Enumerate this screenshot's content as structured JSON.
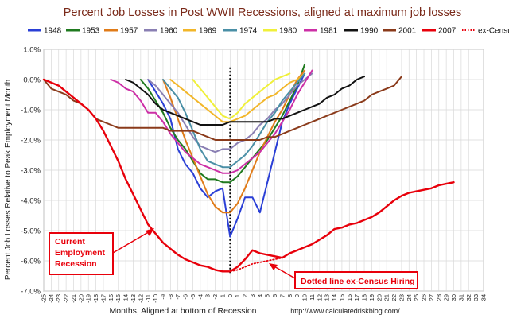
{
  "chart_data": {
    "type": "line",
    "title": "Percent Job Losses in Post WWII Recessions, aligned at maximum job losses",
    "xlabel": "Months, Aligned at bottom of Recession",
    "ylabel": "Percent Job Losses Relative to Peak Employment Month",
    "source": "http://www.calculatedriskblog.com/",
    "xlim": [
      -25,
      34
    ],
    "ylim": [
      -7.0,
      1.0
    ],
    "x_ticks": [
      -25,
      -24,
      -23,
      -22,
      -21,
      -20,
      -19,
      -18,
      -17,
      -16,
      -15,
      -14,
      -13,
      -12,
      -11,
      -10,
      -9,
      -8,
      -7,
      -6,
      -5,
      -4,
      -3,
      -2,
      -1,
      0,
      1,
      2,
      3,
      4,
      5,
      6,
      7,
      8,
      9,
      10,
      11,
      12,
      13,
      14,
      15,
      16,
      17,
      18,
      19,
      20,
      21,
      22,
      23,
      24,
      25,
      26,
      27,
      28,
      29,
      30,
      31,
      32,
      33,
      34
    ],
    "y_ticks": [
      1.0,
      0.0,
      -1.0,
      -2.0,
      -3.0,
      -4.0,
      -5.0,
      -6.0,
      -7.0
    ],
    "y_tick_labels": [
      "1.0%",
      "0.0%",
      "-1.0%",
      "-2.0%",
      "-3.0%",
      "-4.0%",
      "-5.0%",
      "-6.0%",
      "-7.0%"
    ],
    "grid": true,
    "legend_position": "top",
    "series": [
      {
        "name": "1948",
        "color": "#2a3fd6",
        "x": [
          -11,
          -10,
          -9,
          -8,
          -7,
          -6,
          -5,
          -4,
          -3,
          -2,
          -1,
          0,
          1,
          2,
          3,
          4,
          5,
          6,
          7,
          8,
          9,
          10
        ],
        "y": [
          0.0,
          -0.4,
          -0.8,
          -1.3,
          -2.3,
          -2.8,
          -3.1,
          -3.6,
          -3.9,
          -3.7,
          -3.6,
          -5.2,
          -4.6,
          -3.9,
          -3.9,
          -4.4,
          -3.4,
          -2.4,
          -1.4,
          -0.8,
          -0.3,
          0.2
        ]
      },
      {
        "name": "1953",
        "color": "#1f7a1f",
        "x": [
          -12,
          -11,
          -10,
          -9,
          -8,
          -7,
          -6,
          -5,
          -4,
          -3,
          -2,
          -1,
          0,
          1,
          2,
          3,
          4,
          5,
          6,
          7,
          8,
          9,
          10
        ],
        "y": [
          0.0,
          -0.3,
          -0.7,
          -1.1,
          -1.6,
          -2.0,
          -2.3,
          -2.7,
          -3.1,
          -3.3,
          -3.3,
          -3.4,
          -3.4,
          -3.2,
          -2.9,
          -2.6,
          -2.3,
          -2.0,
          -1.6,
          -1.2,
          -0.7,
          -0.2,
          0.5
        ]
      },
      {
        "name": "1957",
        "color": "#e07b18",
        "x": [
          -9,
          -8,
          -7,
          -6,
          -5,
          -4,
          -3,
          -2,
          -1,
          0,
          1,
          2,
          3,
          4,
          5,
          6,
          7,
          8,
          9,
          10
        ],
        "y": [
          0.0,
          -0.6,
          -1.3,
          -2.0,
          -2.6,
          -3.2,
          -3.8,
          -4.2,
          -4.4,
          -4.4,
          -4.1,
          -3.6,
          -3.0,
          -2.4,
          -1.9,
          -1.4,
          -1.0,
          -0.5,
          0.0,
          0.3
        ]
      },
      {
        "name": "1960",
        "color": "#8a7fb3",
        "x": [
          -11,
          -10,
          -9,
          -8,
          -7,
          -6,
          -5,
          -4,
          -3,
          -2,
          -1,
          0,
          1,
          2,
          3,
          4,
          5,
          6,
          7,
          8,
          9,
          10,
          11
        ],
        "y": [
          0.0,
          -0.2,
          -0.5,
          -0.8,
          -1.1,
          -1.5,
          -1.9,
          -2.2,
          -2.3,
          -2.4,
          -2.3,
          -2.3,
          -2.1,
          -2.0,
          -1.8,
          -1.5,
          -1.3,
          -1.0,
          -0.8,
          -0.5,
          -0.2,
          0.0,
          0.2
        ]
      },
      {
        "name": "1969",
        "color": "#f2b629",
        "x": [
          -8,
          -7,
          -6,
          -5,
          -4,
          -3,
          -2,
          -1,
          0,
          1,
          2,
          3,
          4,
          5,
          6,
          7,
          8,
          9,
          10
        ],
        "y": [
          0.0,
          -0.2,
          -0.4,
          -0.6,
          -0.8,
          -1.0,
          -1.2,
          -1.4,
          -1.4,
          -1.3,
          -1.2,
          -1.0,
          -0.8,
          -0.6,
          -0.5,
          -0.3,
          -0.1,
          0.0,
          0.2
        ]
      },
      {
        "name": "1974",
        "color": "#4a8fa6",
        "x": [
          -9,
          -8,
          -7,
          -6,
          -5,
          -4,
          -3,
          -2,
          -1,
          0,
          1,
          2,
          3,
          4,
          5,
          6,
          7,
          8,
          9,
          10
        ],
        "y": [
          0.0,
          -0.3,
          -0.6,
          -1.1,
          -1.7,
          -2.3,
          -2.7,
          -2.8,
          -2.9,
          -2.9,
          -2.7,
          -2.5,
          -2.2,
          -1.8,
          -1.4,
          -1.1,
          -0.7,
          -0.4,
          -0.1,
          0.2
        ]
      },
      {
        "name": "1980",
        "color": "#f0f03a",
        "x": [
          -5,
          -4,
          -3,
          -2,
          -1,
          0,
          1,
          2,
          3,
          4,
          5,
          6,
          7,
          8
        ],
        "y": [
          0.0,
          -0.3,
          -0.6,
          -0.9,
          -1.2,
          -1.3,
          -1.1,
          -0.8,
          -0.6,
          -0.4,
          -0.2,
          0.0,
          0.1,
          0.2
        ]
      },
      {
        "name": "1981",
        "color": "#cc2fa6",
        "x": [
          -16,
          -15,
          -14,
          -13,
          -12,
          -11,
          -10,
          -9,
          -8,
          -7,
          -6,
          -5,
          -4,
          -3,
          -2,
          -1,
          0,
          1,
          2,
          3,
          4,
          5,
          6,
          7,
          8,
          9,
          10,
          11
        ],
        "y": [
          0.0,
          -0.1,
          -0.3,
          -0.4,
          -0.7,
          -1.1,
          -1.1,
          -1.4,
          -1.8,
          -2.1,
          -2.4,
          -2.6,
          -2.8,
          -2.9,
          -3.0,
          -3.1,
          -3.1,
          -3.0,
          -2.8,
          -2.6,
          -2.4,
          -2.1,
          -1.8,
          -1.4,
          -1.0,
          -0.5,
          -0.1,
          0.3
        ]
      },
      {
        "name": "1990",
        "color": "#111111",
        "x": [
          -14,
          -13,
          -12,
          -11,
          -10,
          -9,
          -8,
          -7,
          -6,
          -5,
          -4,
          -3,
          -2,
          -1,
          0,
          1,
          2,
          3,
          4,
          5,
          6,
          7,
          8,
          9,
          10,
          11,
          12,
          13,
          14,
          15,
          16,
          17,
          18
        ],
        "y": [
          0.0,
          -0.1,
          -0.3,
          -0.5,
          -0.8,
          -1.0,
          -1.1,
          -1.2,
          -1.3,
          -1.4,
          -1.5,
          -1.5,
          -1.5,
          -1.5,
          -1.4,
          -1.4,
          -1.4,
          -1.4,
          -1.4,
          -1.4,
          -1.3,
          -1.3,
          -1.2,
          -1.1,
          -1.0,
          -0.9,
          -0.8,
          -0.6,
          -0.5,
          -0.3,
          -0.2,
          0.0,
          0.1
        ]
      },
      {
        "name": "2001",
        "color": "#8a3a1a",
        "x": [
          -25,
          -24,
          -23,
          -22,
          -21,
          -20,
          -19,
          -18,
          -17,
          -16,
          -15,
          -14,
          -13,
          -12,
          -11,
          -10,
          -9,
          -8,
          -7,
          -6,
          -5,
          -4,
          -3,
          -2,
          -1,
          0,
          1,
          2,
          3,
          4,
          5,
          6,
          7,
          8,
          9,
          10,
          11,
          12,
          13,
          14,
          15,
          16,
          17,
          18,
          19,
          20,
          21,
          22,
          23
        ],
        "y": [
          0.0,
          -0.3,
          -0.4,
          -0.5,
          -0.7,
          -0.8,
          -1.0,
          -1.3,
          -1.4,
          -1.5,
          -1.6,
          -1.6,
          -1.6,
          -1.6,
          -1.6,
          -1.6,
          -1.6,
          -1.7,
          -1.7,
          -1.7,
          -1.7,
          -1.8,
          -1.9,
          -2.0,
          -2.0,
          -2.0,
          -2.0,
          -2.0,
          -2.0,
          -2.0,
          -1.9,
          -1.9,
          -1.8,
          -1.7,
          -1.6,
          -1.5,
          -1.4,
          -1.3,
          -1.2,
          -1.1,
          -1.0,
          -0.9,
          -0.8,
          -0.7,
          -0.5,
          -0.4,
          -0.3,
          -0.2,
          0.1
        ]
      },
      {
        "name": "2007",
        "color": "#e8000b",
        "x": [
          -25,
          -24,
          -23,
          -22,
          -21,
          -20,
          -19,
          -18,
          -17,
          -16,
          -15,
          -14,
          -13,
          -12,
          -11,
          -10,
          -9,
          -8,
          -7,
          -6,
          -5,
          -4,
          -3,
          -2,
          -1,
          0,
          1,
          2,
          3,
          4,
          5,
          6,
          7,
          8,
          9,
          10,
          11,
          12,
          13,
          14,
          15,
          16,
          17,
          18,
          19,
          20,
          21,
          22,
          23,
          24,
          25,
          26,
          27,
          28,
          29,
          30
        ],
        "y": [
          0.0,
          -0.1,
          -0.2,
          -0.4,
          -0.6,
          -0.8,
          -1.0,
          -1.3,
          -1.7,
          -2.2,
          -2.7,
          -3.3,
          -3.8,
          -4.3,
          -4.8,
          -5.1,
          -5.4,
          -5.6,
          -5.8,
          -5.95,
          -6.05,
          -6.15,
          -6.2,
          -6.3,
          -6.35,
          -6.35,
          -6.2,
          -5.95,
          -5.65,
          -5.75,
          -5.8,
          -5.85,
          -5.9,
          -5.75,
          -5.65,
          -5.55,
          -5.45,
          -5.3,
          -5.15,
          -4.95,
          -4.9,
          -4.8,
          -4.75,
          -4.65,
          -4.55,
          -4.4,
          -4.2,
          -4.0,
          -3.85,
          -3.75,
          -3.7,
          -3.65,
          -3.6,
          -3.5,
          -3.45,
          -3.4
        ]
      },
      {
        "name": "ex-Census",
        "color": "#e8000b",
        "dashed": true,
        "x": [
          0,
          1,
          2,
          3,
          4,
          5,
          6,
          7
        ],
        "y": [
          -6.35,
          -6.3,
          -6.2,
          -6.1,
          -6.05,
          -6.0,
          -5.95,
          -5.9
        ]
      }
    ],
    "annotations": [
      {
        "text": [
          "Current",
          "Employment",
          "Recession"
        ]
      },
      {
        "text": [
          "Dotted line ex-Census Hiring"
        ]
      }
    ]
  }
}
